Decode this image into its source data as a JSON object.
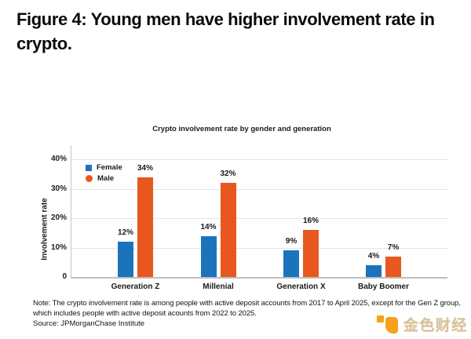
{
  "figure": {
    "title_line1": "Figure 4: Young men have higher involvement rate in",
    "title_line2": "crypto."
  },
  "chart_data": {
    "type": "bar",
    "title": "Crypto involvement rate by gender and generation",
    "xlabel": "",
    "ylabel": "Involvement rate",
    "categories": [
      "Generation Z",
      "Millenial",
      "Generation X",
      "Baby Boomer"
    ],
    "series": [
      {
        "name": "Female",
        "marker": "square",
        "color": "#1b74bb",
        "values": [
          12,
          14,
          9,
          4
        ]
      },
      {
        "name": "Male",
        "marker": "circle",
        "color": "#e8571e",
        "values": [
          34,
          32,
          16,
          7
        ]
      }
    ],
    "value_suffix": "%",
    "yticks": [
      0,
      10,
      20,
      30,
      40
    ],
    "ytick_labels": [
      "0",
      "10%",
      "20%",
      "30%",
      "40%"
    ],
    "ylim": [
      0,
      44.8
    ],
    "grid": "horizontal",
    "legend_position": "top-left-inside"
  },
  "note": {
    "line1": "Note: The crypto involvement rate is among people with active deposit accounts from 2017 to April 2025, except for the Gen Z group,",
    "line2": "which includes people with active deposit acounts from 2022 to 2025."
  },
  "source": {
    "text": "Source: JPMorganChase Institute"
  },
  "watermark": {
    "text": "金色财经",
    "logo_color": "#f5a11c"
  }
}
